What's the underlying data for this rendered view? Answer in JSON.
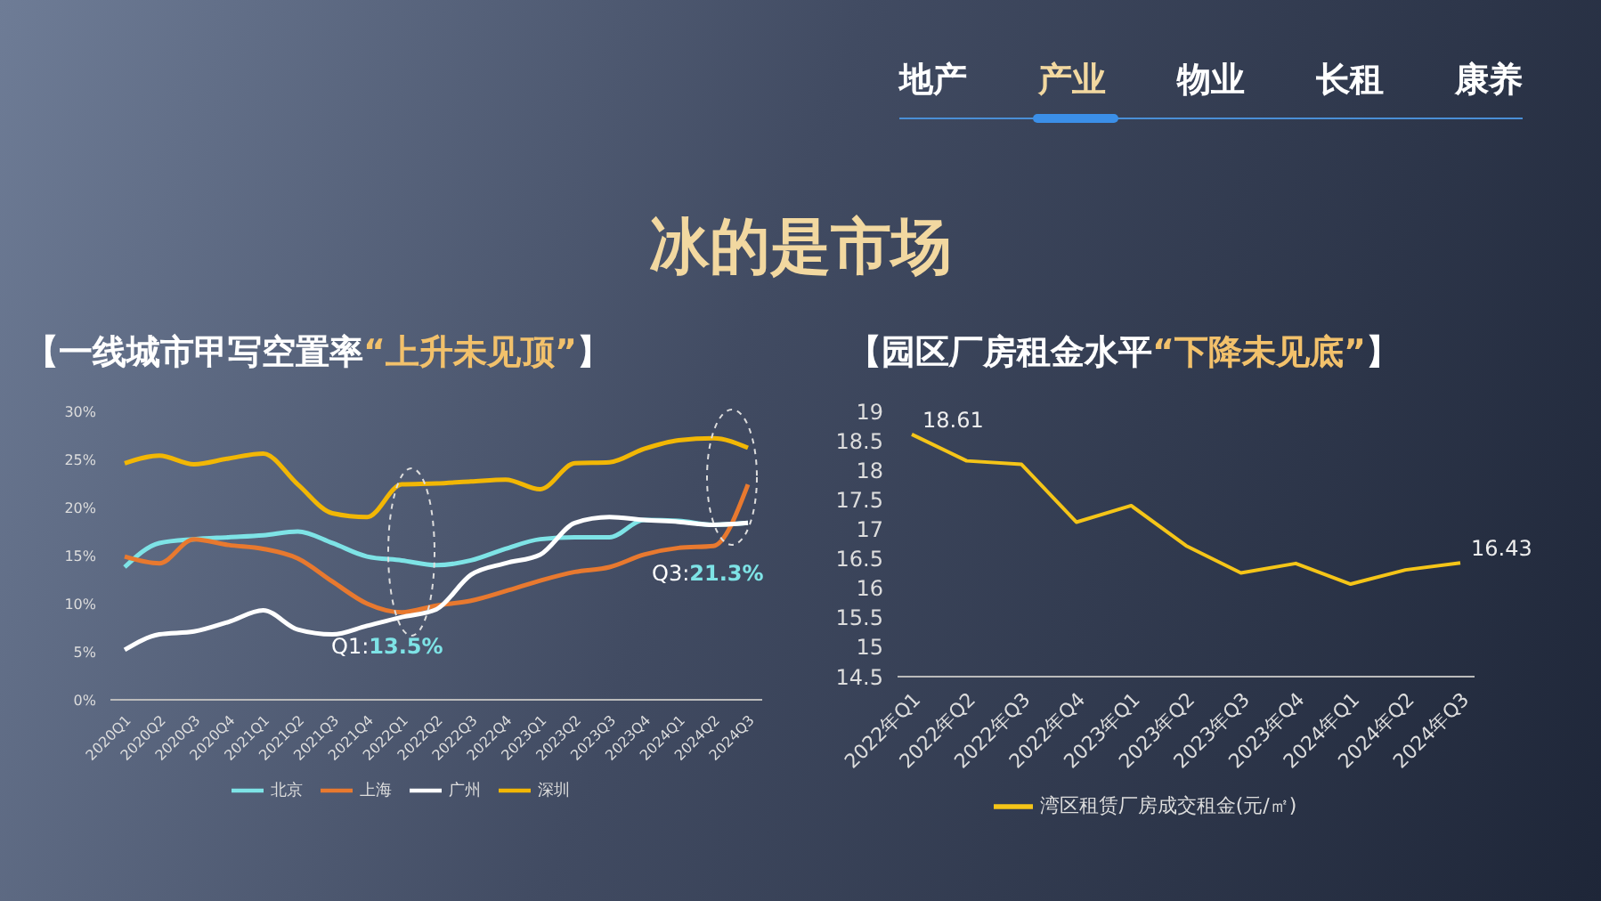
{
  "chart_data": [
    {
      "type": "line",
      "title": "【一线城市甲写空置率“上升未见顶”】",
      "annotations": [
        "地产",
        "产业",
        "物业",
        "长租",
        "康养",
        "冰的是市场",
        "Q1:13.5%",
        "Q3:21.3%"
      ],
      "categories": [
        "2020Q1",
        "2020Q2",
        "2020Q3",
        "2020Q4",
        "2021Q1",
        "2021Q2",
        "2021Q3",
        "2021Q4",
        "2022Q1",
        "2022Q2",
        "2022Q3",
        "2022Q4",
        "2023Q1",
        "2023Q2",
        "2023Q3",
        "2023Q4",
        "2024Q1",
        "2024Q2",
        "2024Q3"
      ],
      "series": [
        {
          "name": "北京",
          "color": "#7ee3e6",
          "values": [
            13.8,
            16.3,
            16.7,
            16.9,
            17.1,
            17.5,
            16.3,
            14.9,
            14.5,
            14.0,
            14.5,
            15.7,
            16.7,
            16.9,
            16.9,
            18.7,
            18.6,
            18.2,
            18.4
          ]
        },
        {
          "name": "上海",
          "color": "#e8792f",
          "values": [
            14.9,
            14.2,
            16.7,
            16.1,
            15.7,
            14.7,
            12.3,
            10.0,
            9.1,
            9.8,
            10.3,
            11.3,
            12.4,
            13.3,
            13.8,
            15.1,
            15.8,
            16.0,
            22.4
          ]
        },
        {
          "name": "广州",
          "color": "#ffffff",
          "values": [
            5.2,
            6.8,
            7.1,
            8.1,
            9.3,
            7.3,
            6.8,
            7.7,
            8.6,
            9.4,
            13.0,
            14.2,
            15.1,
            18.4,
            19.0,
            18.7,
            18.5,
            18.2,
            18.4
          ]
        },
        {
          "name": "深圳",
          "color": "#f2b705",
          "values": [
            24.6,
            25.4,
            24.5,
            25.1,
            25.6,
            22.4,
            19.4,
            19.0,
            22.4,
            22.5,
            22.7,
            22.9,
            21.9,
            24.6,
            24.7,
            26.1,
            27.0,
            27.2,
            26.2
          ]
        }
      ],
      "ylim": [
        0,
        30
      ],
      "yticks": [
        {
          "value": 0,
          "label": "0%"
        },
        {
          "value": 5,
          "label": "5%"
        },
        {
          "value": 10,
          "label": "10%"
        },
        {
          "value": 15,
          "label": "15%"
        },
        {
          "value": 20,
          "label": "20%"
        },
        {
          "value": 25,
          "label": "25%"
        },
        {
          "value": 30,
          "label": "30%"
        }
      ],
      "grid": false,
      "legend": "bottom",
      "marker": "none",
      "line_style": "solid"
    },
    {
      "type": "line",
      "title": "【园区厂房租金水平“下降未见底”】",
      "categories": [
        "2022年Q1",
        "2022年Q2",
        "2022年Q3",
        "2022年Q4",
        "2023年Q1",
        "2023年Q2",
        "2023年Q3",
        "2023年Q4",
        "2024年Q1",
        "2024年Q2",
        "2024年Q3"
      ],
      "series": [
        {
          "name": "湾区租赁厂房成交租金(元/㎡)",
          "color": "#f5c518",
          "values": [
            18.61,
            18.16,
            18.1,
            17.12,
            17.4,
            16.72,
            16.26,
            16.42,
            16.07,
            16.31,
            16.43
          ],
          "value_labels": [
            "18.61",
            null,
            null,
            null,
            null,
            null,
            null,
            null,
            null,
            null,
            "16.43"
          ]
        }
      ],
      "ylim": [
        14.5,
        19
      ],
      "yticks": [
        14.5,
        15,
        15.5,
        16,
        16.5,
        17,
        17.5,
        18,
        18.5,
        19
      ],
      "grid": false,
      "legend": "bottom",
      "marker": "none",
      "line_style": "solid"
    }
  ]
}
